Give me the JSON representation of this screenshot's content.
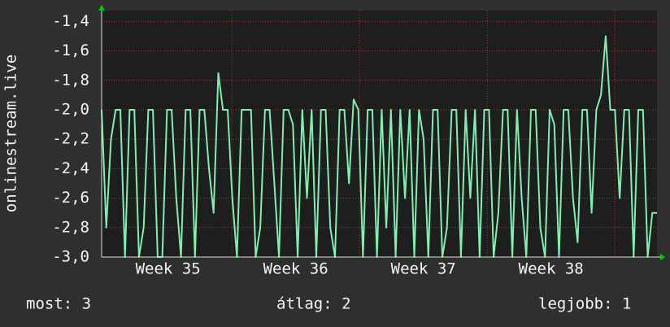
{
  "chart_data": {
    "type": "line",
    "y_label": "onlinestream.live",
    "series": [
      {
        "name": null,
        "color": "#7ff0b0",
        "values": [
          -2.0,
          -2.8,
          -2.2,
          -2.0,
          -2.0,
          -3.0,
          -2.0,
          -2.0,
          -3.0,
          -2.8,
          -2.0,
          -2.0,
          -3.0,
          -3.0,
          -2.0,
          -2.0,
          -2.6,
          -3.0,
          -2.0,
          -2.0,
          -3.0,
          -2.0,
          -2.0,
          -2.4,
          -2.7,
          -1.75,
          -2.0,
          -2.0,
          -2.6,
          -3.0,
          -2.0,
          -2.0,
          -2.0,
          -3.0,
          -2.8,
          -2.0,
          -2.0,
          -2.5,
          -3.0,
          -2.0,
          -2.0,
          -2.1,
          -3.0,
          -2.0,
          -2.6,
          -2.0,
          -3.0,
          -2.0,
          -2.0,
          -2.8,
          -3.0,
          -2.0,
          -2.0,
          -2.5,
          -1.93,
          -2.0,
          -3.0,
          -2.0,
          -2.0,
          -3.0,
          -2.0,
          -2.8,
          -2.0,
          -3.0,
          -2.0,
          -2.6,
          -2.0,
          -3.0,
          -2.0,
          -2.2,
          -3.0,
          -2.0,
          -2.0,
          -3.0,
          -2.8,
          -2.0,
          -2.0,
          -3.0,
          -2.0,
          -2.6,
          -2.0,
          -3.0,
          -2.0,
          -2.0,
          -3.0,
          -2.7,
          -2.0,
          -2.0,
          -3.0,
          -2.0,
          -2.6,
          -3.0,
          -2.0,
          -2.0,
          -2.8,
          -3.0,
          -2.0,
          -2.1,
          -3.0,
          -2.0,
          -2.0,
          -2.6,
          -2.9,
          -2.0,
          -2.0,
          -2.7,
          -2.0,
          -1.9,
          -1.5,
          -2.0,
          -2.0,
          -2.6,
          -2.0,
          -2.0,
          -3.0,
          -2.0,
          -2.0,
          -3.0,
          -2.7,
          -2.7
        ]
      }
    ],
    "xlim": [
      34.48,
      38.83
    ],
    "xticks": [
      {
        "value": 35,
        "label": "Week 35"
      },
      {
        "value": 36,
        "label": "Week 36"
      },
      {
        "value": 37,
        "label": "Week 37"
      },
      {
        "value": 38,
        "label": "Week 38"
      }
    ],
    "ylim": [
      -3.0,
      -1.326
    ],
    "yticks": [
      {
        "value": -3.0,
        "label": "-3,0"
      },
      {
        "value": -2.8,
        "label": "-2,8"
      },
      {
        "value": -2.6,
        "label": "-2,6"
      },
      {
        "value": -2.4,
        "label": "-2,4"
      },
      {
        "value": -2.2,
        "label": "-2,2"
      },
      {
        "value": -2.0,
        "label": "-2,0"
      },
      {
        "value": -1.8,
        "label": "-1,8"
      },
      {
        "value": -1.6,
        "label": "-1,6"
      },
      {
        "value": -1.4,
        "label": "-1,4"
      }
    ],
    "grid": true,
    "footer": [
      "most: 3",
      "átlag: 2",
      "legjobb: 1"
    ]
  }
}
